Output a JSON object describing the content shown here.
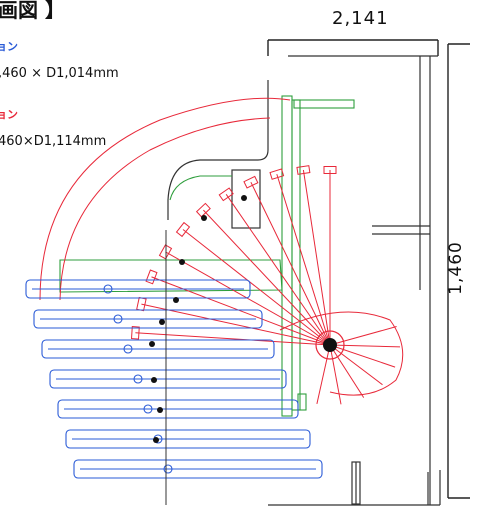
{
  "diagram": {
    "title": "画図 】",
    "width_dimension": "2,141",
    "height_dimension": "1,460",
    "position_a": {
      "name": "ョン",
      "dims": ",460 × D1,014mm"
    },
    "position_b": {
      "name": "ョン",
      "dims": "460×D1,114mm"
    }
  },
  "colors": {
    "blue": "#2a5bd7",
    "red": "#e8293a",
    "green": "#2e9e3c",
    "line": "#333333",
    "text": "#111111"
  }
}
